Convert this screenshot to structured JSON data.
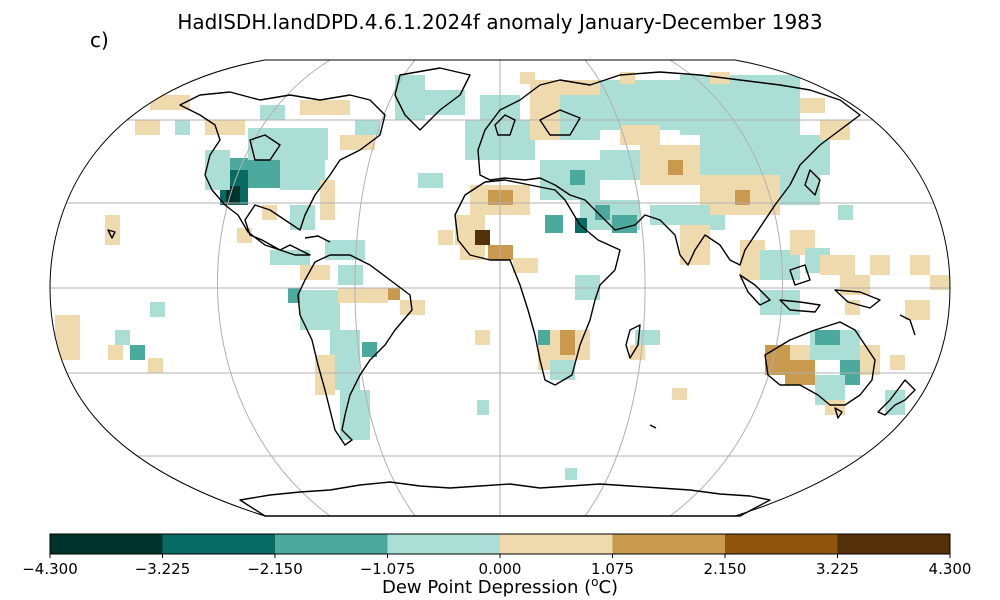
{
  "title": "HadISDH.landDPD.4.6.1.2024f anomaly January-December 1983",
  "panel_label": "c)",
  "colorbar": {
    "label_prefix": "Dew Point Depression (",
    "label_sup": "o",
    "label_suffix": "C)",
    "ticks": [
      "-4.300",
      "-3.225",
      "-2.150",
      "-1.075",
      "0.000",
      "1.075",
      "2.150",
      "3.225",
      "4.300"
    ],
    "colors": [
      "#01332d",
      "#086b63",
      "#4ca99d",
      "#abdfd6",
      "#efdaad",
      "#c99a4d",
      "#8f540e",
      "#53300a"
    ]
  },
  "map": {
    "projection": "Robinson",
    "gridlines": true,
    "coastline_color": "#000000",
    "grid_color": "#b0b0b0"
  }
}
